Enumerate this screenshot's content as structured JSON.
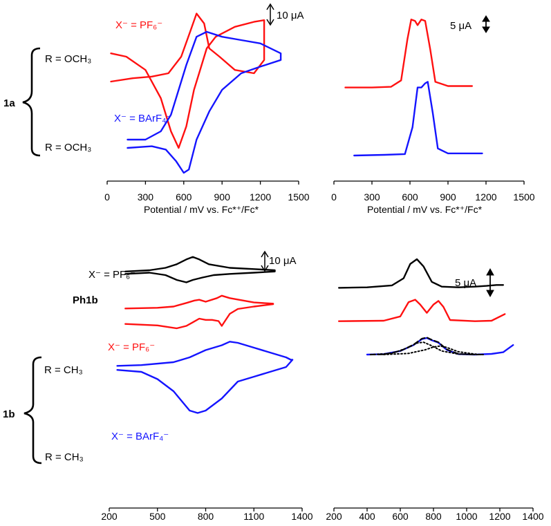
{
  "colors": {
    "red": "#ff1010",
    "blue": "#1414ff",
    "black": "#000000"
  },
  "brackets": {
    "top": {
      "label": "1a"
    },
    "bottom": {
      "label": "1b"
    }
  },
  "labels": {
    "top_cv_pf6": "X⁻ = PF₆⁻",
    "top_cv_barf": "X⁻ = BArF₄⁻",
    "top_r1": "R = OCH₃",
    "top_r2": "R = OCH₃",
    "ph1b": "Ph1b",
    "bot_cv_black": "X⁻ = PF₆⁻",
    "bot_cv_red": "X⁻ = PF₆⁻",
    "bot_cv_blue": "X⁻ = BArF₄⁻",
    "bot_r1": "R = CH₃",
    "bot_r2": "R = CH₃"
  },
  "scalebars": {
    "top_cv": "10 μA",
    "top_dpv": "5 μA",
    "bot_cv": "10 μA",
    "bot_dpv": "5 μA"
  },
  "chart_data": [
    {
      "id": "top_cv",
      "type": "line",
      "xlabel": "Potential / mV vs. Fc*⁺/Fc*",
      "xlim": [
        0,
        1500
      ],
      "xticks": [
        0,
        300,
        600,
        900,
        1200,
        1500
      ],
      "series": [
        {
          "color": "red",
          "label_key": "top_cv_pf6",
          "points": [
            [
              30,
              0.28
            ],
            [
              150,
              0.3
            ],
            [
              300,
              0.38
            ],
            [
              420,
              0.55
            ],
            [
              500,
              0.75
            ],
            [
              560,
              0.85
            ],
            [
              620,
              0.72
            ],
            [
              680,
              0.5
            ],
            [
              720,
              0.4
            ],
            [
              780,
              0.25
            ],
            [
              850,
              0.18
            ],
            [
              1000,
              0.12
            ],
            [
              1150,
              0.09
            ],
            [
              1230,
              0.08
            ],
            [
              1230,
              0.32
            ],
            [
              1150,
              0.4
            ],
            [
              1000,
              0.38
            ],
            [
              880,
              0.3
            ],
            [
              800,
              0.25
            ],
            [
              760,
              0.1
            ],
            [
              700,
              0.04
            ],
            [
              650,
              0.15
            ],
            [
              580,
              0.3
            ],
            [
              480,
              0.4
            ],
            [
              350,
              0.42
            ],
            [
              200,
              0.43
            ],
            [
              30,
              0.45
            ]
          ]
        },
        {
          "color": "blue",
          "label_key": "top_cv_barf",
          "points": [
            [
              160,
              0.8
            ],
            [
              300,
              0.8
            ],
            [
              420,
              0.75
            ],
            [
              500,
              0.65
            ],
            [
              560,
              0.5
            ],
            [
              620,
              0.35
            ],
            [
              700,
              0.18
            ],
            [
              780,
              0.15
            ],
            [
              900,
              0.18
            ],
            [
              1050,
              0.2
            ],
            [
              1200,
              0.22
            ],
            [
              1360,
              0.28
            ],
            [
              1360,
              0.32
            ],
            [
              1200,
              0.36
            ],
            [
              1050,
              0.4
            ],
            [
              900,
              0.5
            ],
            [
              800,
              0.63
            ],
            [
              700,
              0.8
            ],
            [
              640,
              0.98
            ],
            [
              600,
              1.0
            ],
            [
              540,
              0.93
            ],
            [
              460,
              0.86
            ],
            [
              350,
              0.84
            ],
            [
              160,
              0.85
            ]
          ]
        }
      ]
    },
    {
      "id": "top_dpv",
      "type": "line",
      "xlabel": "Potential / mV vs. Fc*⁺/Fc*",
      "xlim": [
        0,
        1500
      ],
      "xticks": [
        0,
        300,
        600,
        900,
        1200,
        1500
      ],
      "series": [
        {
          "color": "red",
          "points": [
            [
              90,
              0.52
            ],
            [
              300,
              0.52
            ],
            [
              450,
              0.515
            ],
            [
              530,
              0.47
            ],
            [
              580,
              0.18
            ],
            [
              610,
              0.04
            ],
            [
              640,
              0.05
            ],
            [
              660,
              0.08
            ],
            [
              690,
              0.04
            ],
            [
              720,
              0.05
            ],
            [
              760,
              0.25
            ],
            [
              800,
              0.48
            ],
            [
              900,
              0.51
            ],
            [
              1090,
              0.51
            ]
          ]
        },
        {
          "color": "blue",
          "points": [
            [
              160,
              1.0
            ],
            [
              400,
              0.995
            ],
            [
              560,
              0.99
            ],
            [
              620,
              0.8
            ],
            [
              660,
              0.52
            ],
            [
              690,
              0.52
            ],
            [
              720,
              0.49
            ],
            [
              740,
              0.48
            ],
            [
              780,
              0.7
            ],
            [
              820,
              0.95
            ],
            [
              900,
              0.985
            ],
            [
              1170,
              0.985
            ]
          ]
        }
      ]
    },
    {
      "id": "bot_cv",
      "type": "line",
      "xlim": [
        200,
        1400
      ],
      "xticks": [
        200,
        500,
        800,
        1100,
        1400
      ],
      "series": [
        {
          "color": "black",
          "label_key": "bot_cv_black",
          "points": [
            [
              300,
              0.065
            ],
            [
              450,
              0.06
            ],
            [
              550,
              0.05
            ],
            [
              620,
              0.035
            ],
            [
              680,
              0.015
            ],
            [
              720,
              0.005
            ],
            [
              760,
              0.015
            ],
            [
              820,
              0.035
            ],
            [
              950,
              0.05
            ],
            [
              1100,
              0.055
            ],
            [
              1230,
              0.06
            ],
            [
              1230,
              0.065
            ],
            [
              1100,
              0.07
            ],
            [
              950,
              0.075
            ],
            [
              850,
              0.08
            ],
            [
              780,
              0.09
            ],
            [
              720,
              0.1
            ],
            [
              680,
              0.11
            ],
            [
              620,
              0.1
            ],
            [
              550,
              0.08
            ],
            [
              450,
              0.07
            ],
            [
              300,
              0.075
            ]
          ]
        },
        {
          "color": "red",
          "label_key": "bot_cv_red",
          "points": [
            [
              300,
              0.218
            ],
            [
              500,
              0.215
            ],
            [
              600,
              0.21
            ],
            [
              680,
              0.195
            ],
            [
              730,
              0.185
            ],
            [
              760,
              0.182
            ],
            [
              800,
              0.19
            ],
            [
              870,
              0.175
            ],
            [
              900,
              0.165
            ],
            [
              950,
              0.175
            ],
            [
              1100,
              0.193
            ],
            [
              1220,
              0.198
            ],
            [
              1220,
              0.2
            ],
            [
              1100,
              0.21
            ],
            [
              1000,
              0.22
            ],
            [
              950,
              0.24
            ],
            [
              920,
              0.27
            ],
            [
              900,
              0.29
            ],
            [
              880,
              0.27
            ],
            [
              840,
              0.265
            ],
            [
              800,
              0.265
            ],
            [
              760,
              0.26
            ],
            [
              720,
              0.275
            ],
            [
              680,
              0.29
            ],
            [
              620,
              0.3
            ],
            [
              500,
              0.288
            ],
            [
              300,
              0.282
            ]
          ]
        },
        {
          "color": "blue",
          "label_key": "bot_cv_blue",
          "points": [
            [
              250,
              0.455
            ],
            [
              400,
              0.452
            ],
            [
              600,
              0.44
            ],
            [
              700,
              0.42
            ],
            [
              800,
              0.39
            ],
            [
              900,
              0.37
            ],
            [
              950,
              0.355
            ],
            [
              1000,
              0.36
            ],
            [
              1100,
              0.38
            ],
            [
              1200,
              0.4
            ],
            [
              1300,
              0.42
            ],
            [
              1330,
              0.43
            ],
            [
              1340,
              0.43
            ],
            [
              1300,
              0.46
            ],
            [
              1200,
              0.48
            ],
            [
              1100,
              0.5
            ],
            [
              1000,
              0.52
            ],
            [
              900,
              0.59
            ],
            [
              800,
              0.64
            ],
            [
              750,
              0.65
            ],
            [
              700,
              0.64
            ],
            [
              600,
              0.56
            ],
            [
              500,
              0.51
            ],
            [
              400,
              0.48
            ],
            [
              250,
              0.472
            ]
          ]
        }
      ]
    },
    {
      "id": "bot_dpv",
      "type": "line",
      "xlim": [
        200,
        1400
      ],
      "xticks": [
        200,
        400,
        600,
        800,
        1000,
        1200,
        1400
      ],
      "series": [
        {
          "color": "black",
          "points": [
            [
              230,
              0.12
            ],
            [
              400,
              0.118
            ],
            [
              550,
              0.11
            ],
            [
              620,
              0.08
            ],
            [
              660,
              0.02
            ],
            [
              700,
              0.0
            ],
            [
              740,
              0.03
            ],
            [
              790,
              0.095
            ],
            [
              850,
              0.115
            ],
            [
              950,
              0.118
            ],
            [
              1050,
              0.115
            ],
            [
              1120,
              0.112
            ],
            [
              1180,
              0.108
            ],
            [
              1220,
              0.108
            ]
          ]
        },
        {
          "color": "red",
          "points": [
            [
              230,
              0.26
            ],
            [
              500,
              0.258
            ],
            [
              600,
              0.24
            ],
            [
              650,
              0.18
            ],
            [
              690,
              0.17
            ],
            [
              720,
              0.19
            ],
            [
              760,
              0.225
            ],
            [
              800,
              0.19
            ],
            [
              830,
              0.175
            ],
            [
              860,
              0.2
            ],
            [
              900,
              0.255
            ],
            [
              1050,
              0.26
            ],
            [
              1150,
              0.258
            ],
            [
              1230,
              0.23
            ]
          ]
        },
        {
          "color": "blue",
          "points": [
            [
              400,
              0.4
            ],
            [
              500,
              0.398
            ],
            [
              600,
              0.385
            ],
            [
              680,
              0.36
            ],
            [
              730,
              0.335
            ],
            [
              760,
              0.33
            ],
            [
              790,
              0.34
            ],
            [
              830,
              0.35
            ],
            [
              880,
              0.38
            ],
            [
              950,
              0.398
            ],
            [
              1050,
              0.4
            ],
            [
              1150,
              0.397
            ],
            [
              1220,
              0.39
            ],
            [
              1280,
              0.36
            ]
          ]
        },
        {
          "color": "black",
          "dash": "dashed",
          "points": [
            [
              420,
              0.4
            ],
            [
              500,
              0.399
            ],
            [
              600,
              0.385
            ],
            [
              680,
              0.358
            ],
            [
              730,
              0.333
            ],
            [
              760,
              0.328
            ],
            [
              790,
              0.338
            ],
            [
              830,
              0.348
            ],
            [
              880,
              0.378
            ],
            [
              950,
              0.397
            ],
            [
              1050,
              0.4
            ],
            [
              1100,
              0.4
            ]
          ]
        },
        {
          "color": "black",
          "dash": "dotted",
          "points": [
            [
              420,
              0.4
            ],
            [
              550,
              0.395
            ],
            [
              650,
              0.37
            ],
            [
              700,
              0.352
            ],
            [
              740,
              0.348
            ],
            [
              780,
              0.36
            ],
            [
              850,
              0.385
            ],
            [
              950,
              0.398
            ],
            [
              1050,
              0.4
            ]
          ]
        },
        {
          "color": "black",
          "dash": "dotted",
          "points": [
            [
              500,
              0.4
            ],
            [
              650,
              0.395
            ],
            [
              750,
              0.38
            ],
            [
              800,
              0.368
            ],
            [
              840,
              0.364
            ],
            [
              880,
              0.37
            ],
            [
              950,
              0.388
            ],
            [
              1050,
              0.398
            ],
            [
              1100,
              0.4
            ]
          ]
        }
      ]
    }
  ]
}
